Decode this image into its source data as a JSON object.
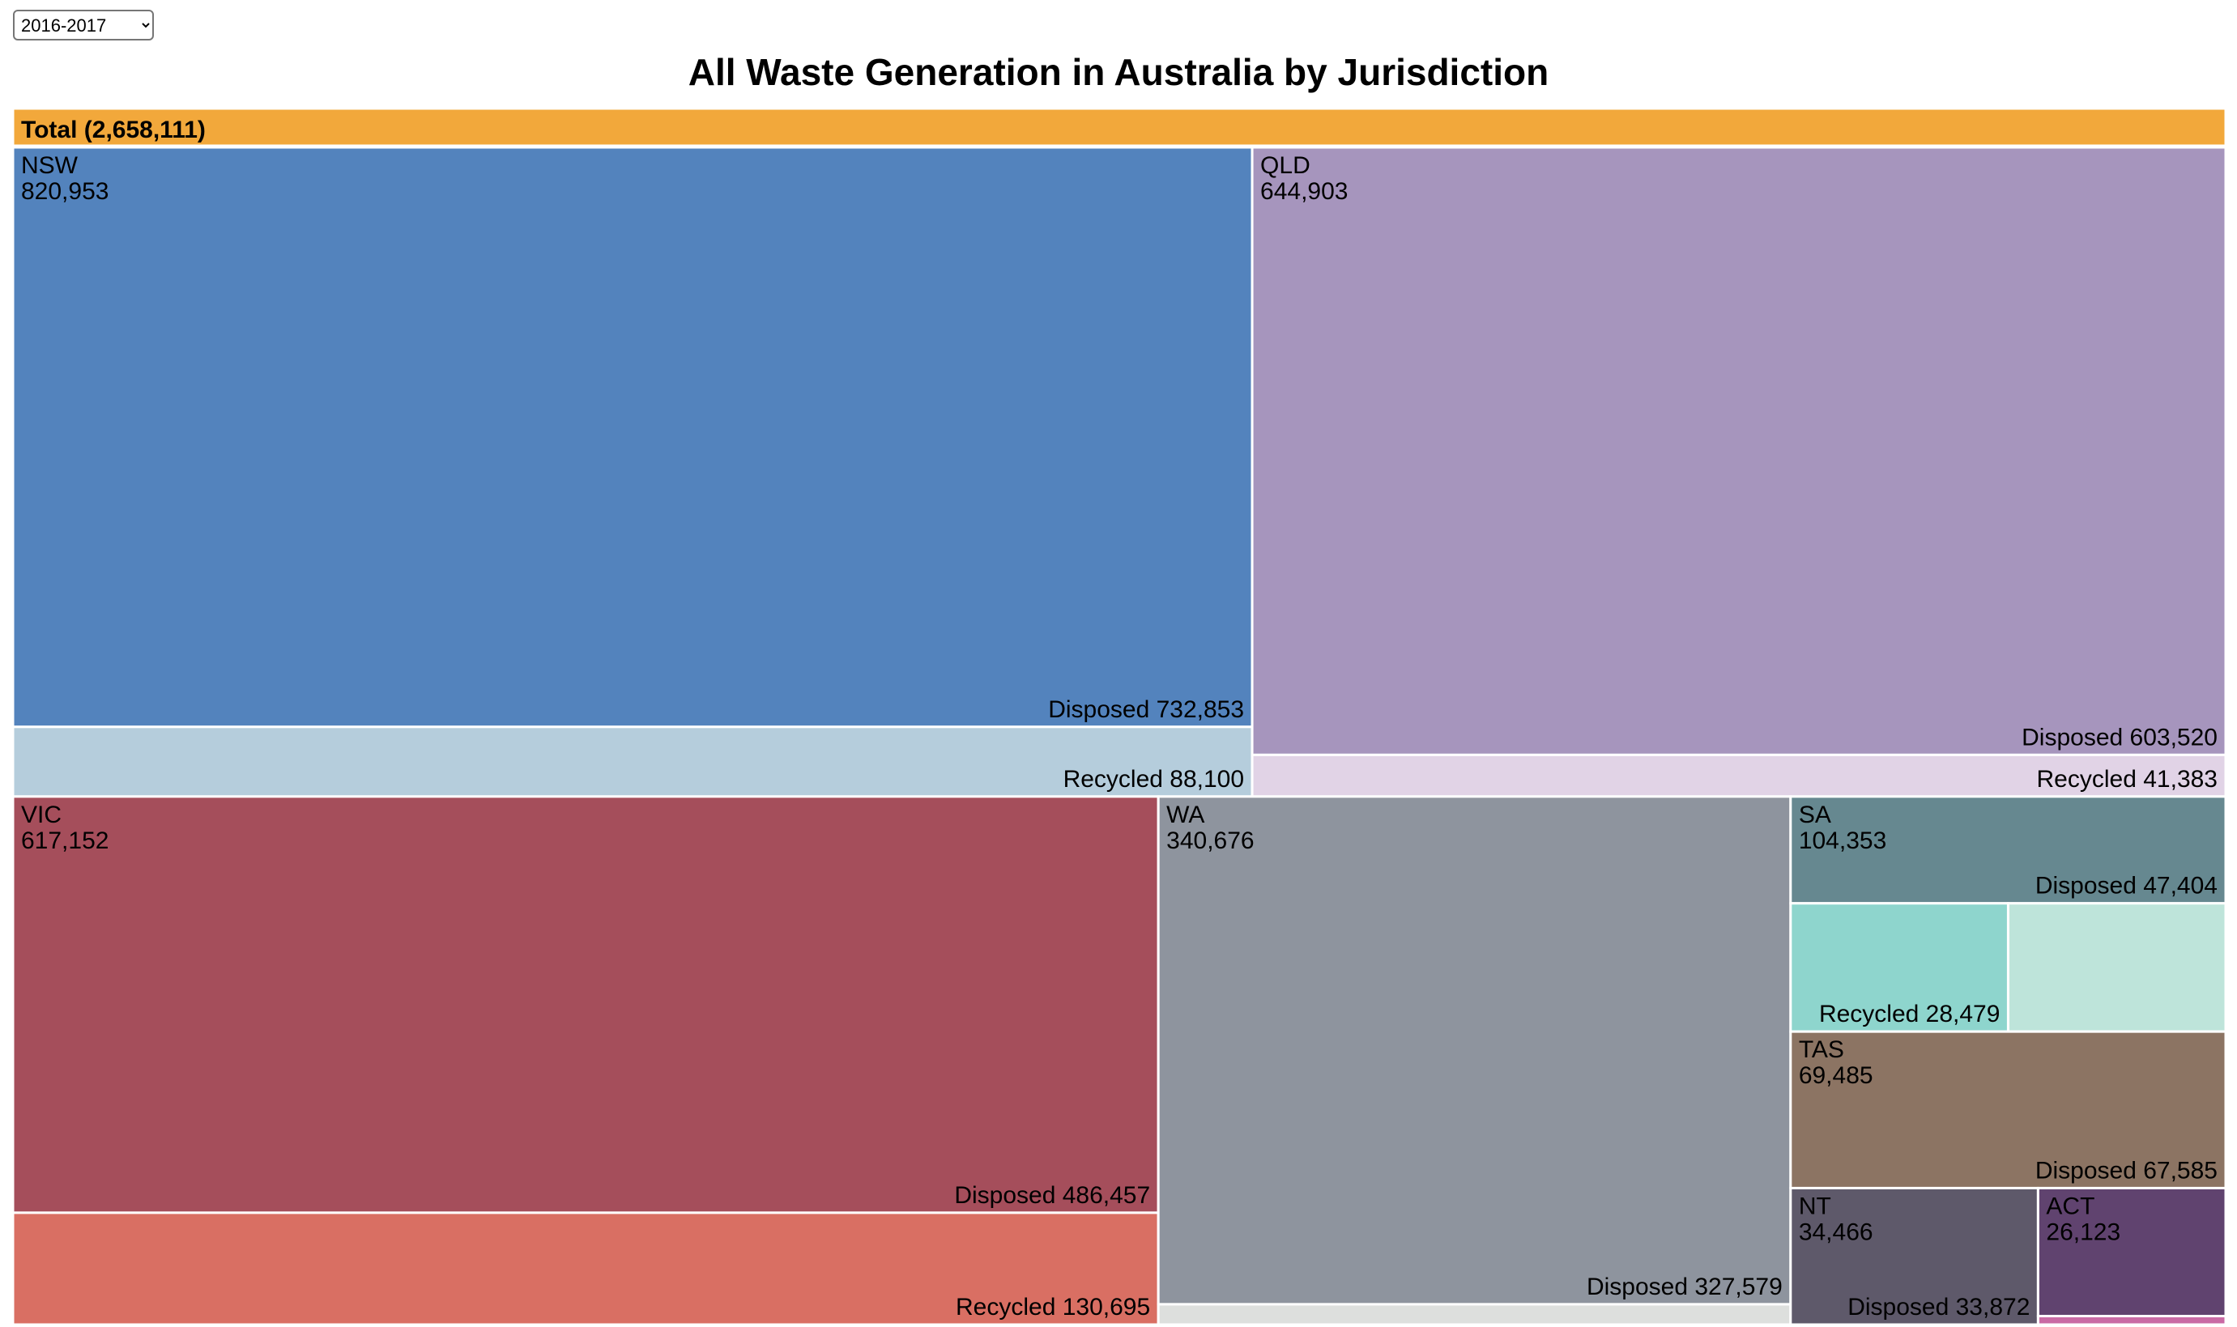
{
  "controls": {
    "year_options": [
      "2016-2017"
    ],
    "year_selected": "2016-2017"
  },
  "colors": {
    "total_header": "#F2A83B",
    "NSW": {
      "state": "#5383BD",
      "recycled": "#B5CDDC"
    },
    "QLD": {
      "state": "#A695BD",
      "recycled": "#E1D3E6"
    },
    "VIC": {
      "state": "#A54E5B",
      "recycled": "#D96F63"
    },
    "WA": {
      "state": "#8E949E",
      "recycled": "#DDDFDD"
    },
    "SA": {
      "state": "#668890",
      "recycled": "#8ED5CD",
      "extra": "#BEE4DA"
    },
    "TAS": {
      "state": "#8C7463"
    },
    "NT": {
      "state": "#5E596A"
    },
    "ACT": {
      "state": "#60436F",
      "recycled": "#C96AA4"
    }
  },
  "chart_data": {
    "type": "treemap",
    "title": "All Waste Generation in Australia by Jurisdiction",
    "root_label": "Total (2,658,111)",
    "total": 2658111,
    "jurisdictions": [
      {
        "name": "NSW",
        "total": 820953,
        "total_label": "820,953",
        "children": [
          {
            "name": "Disposed",
            "value": 732853,
            "label": "Disposed 732,853"
          },
          {
            "name": "Recycled",
            "value": 88100,
            "label": "Recycled 88,100"
          }
        ]
      },
      {
        "name": "QLD",
        "total": 644903,
        "total_label": "644,903",
        "children": [
          {
            "name": "Disposed",
            "value": 603520,
            "label": "Disposed 603,520"
          },
          {
            "name": "Recycled",
            "value": 41383,
            "label": "Recycled 41,383"
          }
        ]
      },
      {
        "name": "VIC",
        "total": 617152,
        "total_label": "617,152",
        "children": [
          {
            "name": "Disposed",
            "value": 486457,
            "label": "Disposed 486,457"
          },
          {
            "name": "Recycled",
            "value": 130695,
            "label": "Recycled 130,695"
          }
        ]
      },
      {
        "name": "WA",
        "total": 340676,
        "total_label": "340,676",
        "children": [
          {
            "name": "Disposed",
            "value": 327579,
            "label": "Disposed 327,579"
          },
          {
            "name": "Recycled",
            "value": 13097,
            "label": ""
          }
        ]
      },
      {
        "name": "SA",
        "total": 104353,
        "total_label": "104,353",
        "children": [
          {
            "name": "Disposed",
            "value": 47404,
            "label": "Disposed 47,404"
          },
          {
            "name": "Recycled",
            "value": 28479,
            "label": "Recycled 28,479"
          },
          {
            "name": "Other",
            "value": 28470,
            "label": ""
          }
        ]
      },
      {
        "name": "TAS",
        "total": 69485,
        "total_label": "69,485",
        "children": [
          {
            "name": "Disposed",
            "value": 67585,
            "label": "Disposed 67,585"
          }
        ]
      },
      {
        "name": "NT",
        "total": 34466,
        "total_label": "34,466",
        "children": [
          {
            "name": "Disposed",
            "value": 33872,
            "label": "Disposed 33,872"
          }
        ]
      },
      {
        "name": "ACT",
        "total": 26123,
        "total_label": "26,123",
        "children": [
          {
            "name": "Disposed",
            "value": 24500,
            "label": ""
          },
          {
            "name": "Recycled",
            "value": 1623,
            "label": ""
          }
        ]
      }
    ]
  }
}
